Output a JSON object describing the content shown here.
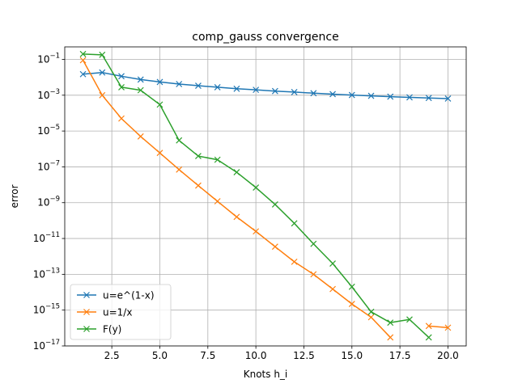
{
  "chart_data": {
    "type": "line",
    "title": "comp_gauss convergence",
    "xlabel": "Knots h_i",
    "ylabel": "error",
    "xlim": [
      0.05,
      20.95
    ],
    "ylim": [
      1e-17,
      0.5
    ],
    "yscale": "log",
    "grid": true,
    "legend_position": "lower-left",
    "x_ticks": [
      2.5,
      5.0,
      7.5,
      10.0,
      12.5,
      15.0,
      17.5,
      20.0
    ],
    "x_tick_labels": [
      "2.5",
      "5.0",
      "7.5",
      "10.0",
      "12.5",
      "15.0",
      "17.5",
      "20.0"
    ],
    "y_tick_exponents": [
      -1,
      -3,
      -5,
      -7,
      -9,
      -11,
      -13,
      -15,
      -17
    ],
    "y_tick_base": "10",
    "series": [
      {
        "name": "u=e^(1-x)",
        "color": "#1f77b4",
        "marker": "x",
        "x": [
          1,
          2,
          3,
          4,
          5,
          6,
          7,
          8,
          9,
          10,
          11,
          12,
          13,
          14,
          15,
          16,
          17,
          18,
          19,
          20
        ],
        "y": [
          0.015,
          0.0185,
          0.0115,
          0.0075,
          0.0055,
          0.0042,
          0.0034,
          0.0028,
          0.0023,
          0.002,
          0.0017,
          0.0015,
          0.0013,
          0.00115,
          0.00102,
          0.00092,
          0.00083,
          0.00076,
          0.0007,
          0.00065
        ]
      },
      {
        "name": "u=1/x",
        "color": "#ff7f0e",
        "marker": "x",
        "x": [
          1,
          2,
          3,
          4,
          5,
          6,
          7,
          8,
          9,
          10,
          11,
          12,
          13,
          14,
          15,
          16,
          17,
          null,
          19,
          20
        ],
        "y": [
          0.09,
          0.001,
          5e-05,
          5e-06,
          6e-07,
          7e-08,
          9e-09,
          1.2e-09,
          1.6e-10,
          2.5e-11,
          3.5e-12,
          5e-13,
          1e-13,
          1.5e-14,
          2.2e-15,
          4e-16,
          3e-17,
          null,
          1.3e-16,
          1.05e-16
        ]
      },
      {
        "name": "F(y)",
        "color": "#2ca02c",
        "marker": "x",
        "x": [
          1,
          2,
          3,
          4,
          5,
          6,
          7,
          8,
          9,
          10,
          11,
          12,
          13,
          14,
          15,
          16,
          17,
          18,
          19
        ],
        "y": [
          0.2,
          0.18,
          0.0028,
          0.0019,
          0.0003,
          3e-06,
          4e-07,
          2.5e-07,
          5e-08,
          7e-09,
          8e-10,
          7e-11,
          5e-12,
          4e-13,
          2e-14,
          8e-16,
          2e-16,
          3e-16,
          3e-17
        ]
      }
    ]
  }
}
